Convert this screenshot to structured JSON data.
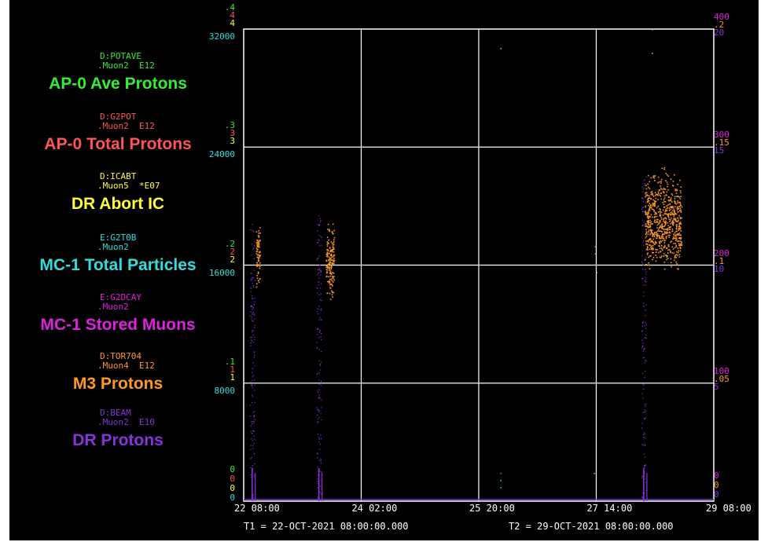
{
  "colors": {
    "background": "#000000",
    "grid": "#ffffff",
    "green": "#33ee33",
    "red": "#ff5555",
    "yellow": "#ffff33",
    "cyan": "#33dddd",
    "magenta": "#dd22dd",
    "orange": "#ff9922",
    "purple": "#8833dd"
  },
  "legend": [
    {
      "device": "D:POTAVE",
      "units": ".Muon2  E12",
      "title": "AP-0 Ave Protons",
      "color": "#33ee33"
    },
    {
      "device": "D:G2POT",
      "units": ".Muon2  E12",
      "title": "AP-0 Total Protons",
      "color": "#ff5555"
    },
    {
      "device": "D:ICABT",
      "units": ".Muon5  *E07",
      "title": "DR Abort IC",
      "color": "#ffff33"
    },
    {
      "device": "E:G2T0B",
      "units": ".Muon2",
      "title": "MC-1 Total Particles",
      "color": "#33dddd"
    },
    {
      "device": "E:G2DCAY",
      "units": ".Muon2",
      "title": "MC-1 Stored Muons",
      "color": "#dd22dd"
    },
    {
      "device": "D:TOR704",
      "units": ".Muon4  E12",
      "title": "M3 Protons",
      "color": "#ff9922"
    },
    {
      "device": "D:BEAM",
      "units": ".Muon2  E10",
      "title": "DR Protons",
      "color": "#8833dd"
    }
  ],
  "footer": {
    "t1": "T1 = 22-OCT-2021 08:00:00.000",
    "t2": "T2 = 29-OCT-2021 08:00:00.000"
  },
  "chart_data": {
    "type": "scatter",
    "x_range": [
      "22-OCT-2021 08:00",
      "29-OCT-2021 08:00"
    ],
    "x_ticks": [
      "22 08:00",
      "24 02:00",
      "25 20:00",
      "27 14:00",
      "29 08:00"
    ],
    "grid": true,
    "left_axes": [
      {
        "color": "#33ee33",
        "ticks": [
          "0",
          ".1",
          ".2",
          ".3",
          ".4"
        ]
      },
      {
        "color": "#ff5555",
        "ticks": [
          "0",
          "1",
          "2",
          "3",
          "4"
        ]
      },
      {
        "color": "#ffff33",
        "ticks": [
          "0",
          "1",
          "2",
          "3",
          "4"
        ]
      },
      {
        "color": "#33dddd",
        "ticks": [
          "0",
          "8000",
          "16000",
          "24000",
          "32000"
        ]
      }
    ],
    "right_axes": [
      {
        "color": "#dd22dd",
        "ticks": [
          "0",
          "100",
          "200",
          "300",
          "400"
        ]
      },
      {
        "color": "#ff9922",
        "ticks": [
          "0",
          ".05",
          ".1",
          ".15",
          ".2"
        ]
      },
      {
        "color": "#8833dd",
        "ticks": [
          "0",
          "5",
          "10",
          "15",
          "20"
        ]
      }
    ],
    "series": [
      {
        "color": "#ff9922",
        "clusters": [
          {
            "x_frac": [
              0.026,
              0.034
            ],
            "y_range": [
              0.085,
              0.123
            ]
          },
          {
            "x_frac": [
              0.174,
              0.192
            ],
            "y_range": [
              0.083,
              0.122
            ]
          },
          {
            "x_frac": [
              0.853,
              0.931
            ],
            "y_range": [
              0.091,
              0.145
            ]
          }
        ],
        "points": [
          {
            "x_frac": 0.546,
            "y": 0.192
          },
          {
            "x_frac": 0.747,
            "y": 0.105
          },
          {
            "x_frac": 0.747,
            "y": 0.108
          },
          {
            "x_frac": 0.75,
            "y": 0.097
          },
          {
            "x_frac": 0.745,
            "y": 0.012
          },
          {
            "x_frac": 0.868,
            "y": 0.19
          },
          {
            "x_frac": 0.868,
            "y": 0.2
          }
        ]
      },
      {
        "color": "#8833dd",
        "spikes": [
          {
            "x_frac": 0.018,
            "peak": 11.8
          },
          {
            "x_frac": 0.16,
            "peak": 12.2
          },
          {
            "x_frac": 0.851,
            "peak": 13.9
          }
        ]
      }
    ]
  }
}
